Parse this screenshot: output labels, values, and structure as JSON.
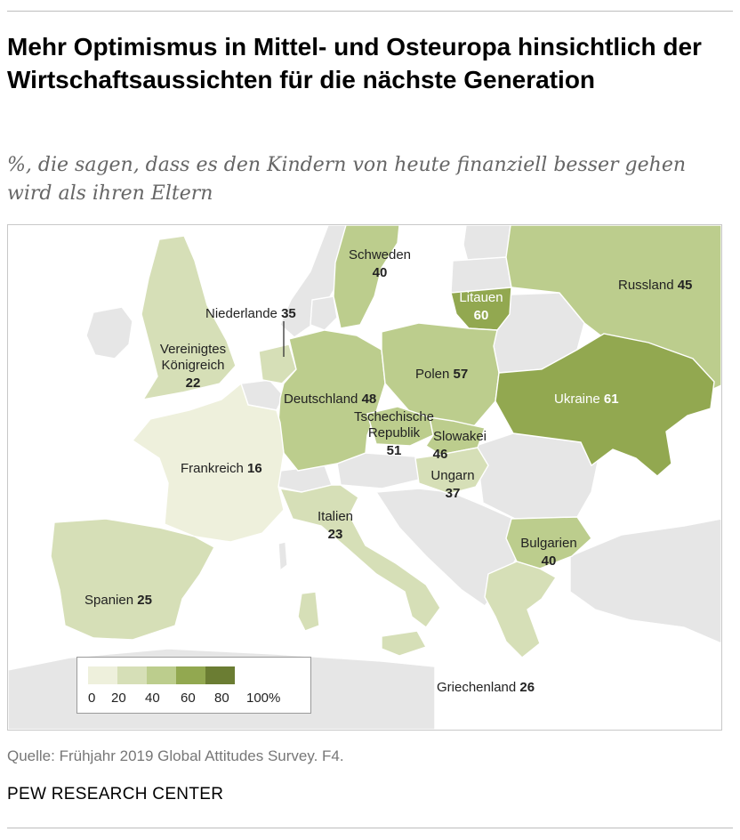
{
  "title": "Mehr Optimismus in Mittel- und Osteuropa hinsichtlich der Wirtschaftsaussichten für die nächste Generation",
  "subtitle": " %, die sagen, dass es den Kindern von heute finanziell besser gehen wird als ihren Eltern",
  "colors": {
    "scale": [
      "#eef0dc",
      "#d6dfb7",
      "#bccd8d",
      "#92a850",
      "#6b7d33"
    ],
    "no_data": "#e6e6e6",
    "border": "#ffffff"
  },
  "countries": [
    {
      "id": "schweden",
      "name": "Schweden",
      "value": 40
    },
    {
      "id": "litauen",
      "name": "Litauen",
      "value": 60
    },
    {
      "id": "russland",
      "name": "Russland",
      "value": 45
    },
    {
      "id": "niederlande",
      "name": "Niederlande",
      "value": 35
    },
    {
      "id": "uk",
      "name_line1": "Vereinigtes",
      "name_line2": "Königreich",
      "value": 22
    },
    {
      "id": "polen",
      "name": "Polen",
      "value": 57
    },
    {
      "id": "deutschland",
      "name": "Deutschland",
      "value": 48
    },
    {
      "id": "ukraine",
      "name": "Ukraine",
      "value": 61
    },
    {
      "id": "tschechien",
      "name_line1": "Tschechische",
      "name_line2": "Republik",
      "value": 51
    },
    {
      "id": "slowakei",
      "name": "Slowakei",
      "value": 46
    },
    {
      "id": "frankreich",
      "name": "Frankreich",
      "value": 16
    },
    {
      "id": "ungarn",
      "name": "Ungarn",
      "value": 37
    },
    {
      "id": "italien",
      "name": "Italien",
      "value": 23
    },
    {
      "id": "bulgarien",
      "name": "Bulgarien",
      "value": 40
    },
    {
      "id": "spanien",
      "name": "Spanien",
      "value": 25
    },
    {
      "id": "griechenland",
      "name": "Griechenland",
      "value": 26
    }
  ],
  "legend": {
    "ticks": [
      "0",
      "20",
      "40",
      "60",
      "80",
      "100%"
    ]
  },
  "source": "Quelle: Frühjahr 2019 Global Attitudes Survey. F4.",
  "org": "PEW RESEARCH CENTER"
}
